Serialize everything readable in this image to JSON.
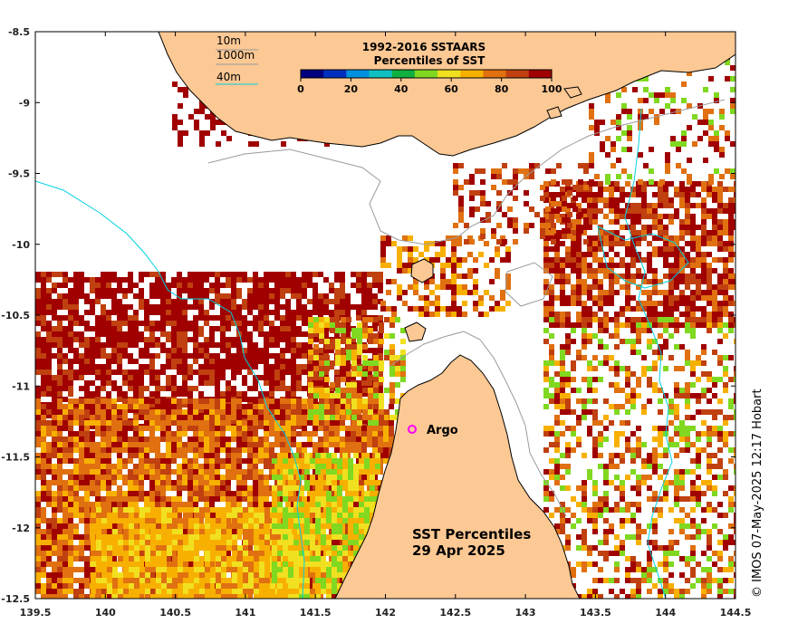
{
  "map": {
    "title_line1": "SST Percentiles",
    "title_line2": "29 Apr 2025",
    "credit": "© IMOS 07-May-2025 12:17 Hobart",
    "argo_label": "Argo",
    "lon_ticks": [
      "139.5",
      "140",
      "140.5",
      "141",
      "141.5",
      "142",
      "142.5",
      "143",
      "143.5",
      "144",
      "144.5"
    ],
    "lat_ticks": [
      "-8.5",
      "-9",
      "-9.5",
      "-10",
      "-10.5",
      "-11",
      "-11.5",
      "-12",
      "-12.5"
    ],
    "contour_legend": [
      {
        "label": "10m",
        "color": "#9a9a9a"
      },
      {
        "label": "1000m",
        "color": "#9a9a9a"
      },
      {
        "label": "40m",
        "color": "#00d0e0"
      }
    ],
    "colorbar": {
      "title_line1": "1992-2016 SSTAARS",
      "title_line2": "Percentiles of SST",
      "tick_labels": [
        "0",
        "20",
        "40",
        "60",
        "80",
        "100"
      ],
      "colors": [
        "#00007f",
        "#0030c0",
        "#0090e0",
        "#10c0c0",
        "#10b040",
        "#80d820",
        "#f0e020",
        "#f8b000",
        "#e07010",
        "#c04010",
        "#a00000"
      ]
    },
    "land_color": "#fcc894",
    "argo_color": "#ff00ff"
  }
}
